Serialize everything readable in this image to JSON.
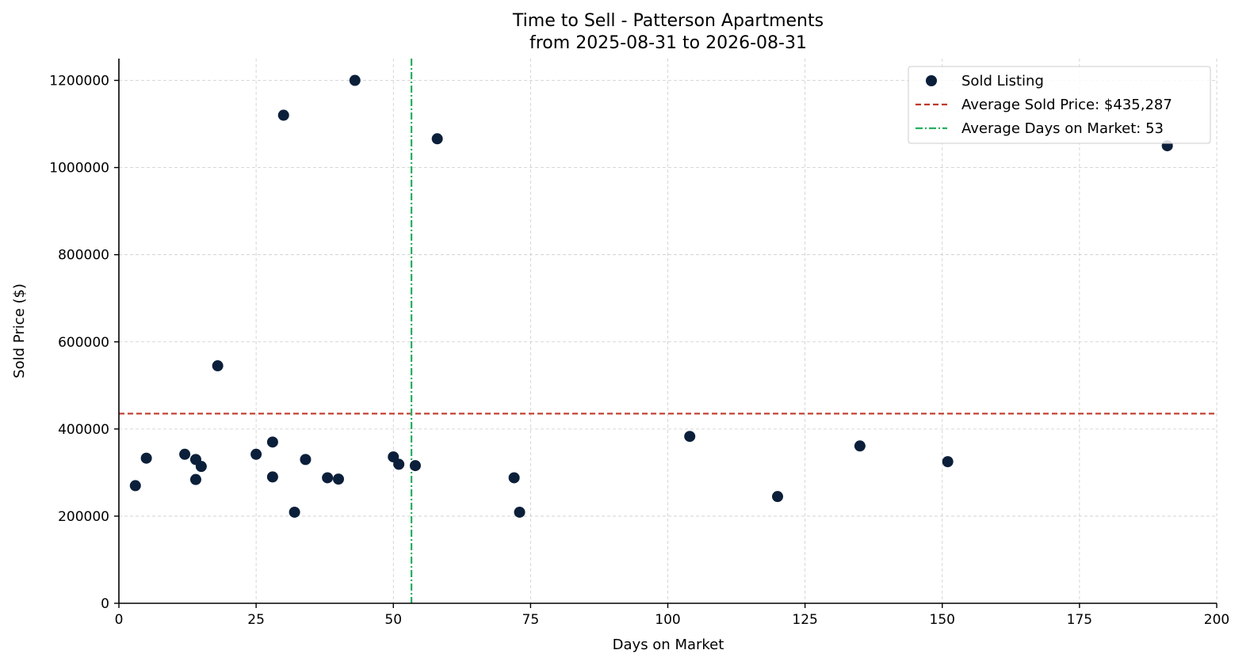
{
  "chart_data": {
    "type": "scatter",
    "title": "Time to Sell - Patterson Apartments",
    "subtitle": "from 2025-08-31 to 2026-08-31",
    "xlabel": "Days on Market",
    "ylabel": "Sold Price ($)",
    "xlim": [
      0,
      200
    ],
    "ylim": [
      0,
      1250000
    ],
    "xticks": [
      0,
      25,
      50,
      75,
      100,
      125,
      150,
      175,
      200
    ],
    "yticks": [
      0,
      200000,
      400000,
      600000,
      800000,
      1000000,
      1200000
    ],
    "grid": true,
    "legend_position": "top-right",
    "colors": {
      "points": "#0b1f3a",
      "avg_price_line": "#c0392b",
      "avg_days_line": "#27ae60"
    },
    "series": [
      {
        "name": "Sold Listing",
        "points": [
          {
            "x": 3,
            "y": 270000
          },
          {
            "x": 5,
            "y": 333000
          },
          {
            "x": 12,
            "y": 342000
          },
          {
            "x": 14,
            "y": 330000
          },
          {
            "x": 14,
            "y": 284000
          },
          {
            "x": 15,
            "y": 314000
          },
          {
            "x": 18,
            "y": 545000
          },
          {
            "x": 25,
            "y": 342000
          },
          {
            "x": 28,
            "y": 370000
          },
          {
            "x": 28,
            "y": 290000
          },
          {
            "x": 30,
            "y": 1120000
          },
          {
            "x": 32,
            "y": 209000
          },
          {
            "x": 34,
            "y": 330000
          },
          {
            "x": 38,
            "y": 288000
          },
          {
            "x": 40,
            "y": 285000
          },
          {
            "x": 43,
            "y": 1200000
          },
          {
            "x": 50,
            "y": 336000
          },
          {
            "x": 51,
            "y": 319000
          },
          {
            "x": 54,
            "y": 316000
          },
          {
            "x": 58,
            "y": 1066000
          },
          {
            "x": 72,
            "y": 288000
          },
          {
            "x": 73,
            "y": 209000
          },
          {
            "x": 104,
            "y": 383000
          },
          {
            "x": 120,
            "y": 245000
          },
          {
            "x": 135,
            "y": 361000
          },
          {
            "x": 151,
            "y": 325000
          },
          {
            "x": 191,
            "y": 1050000
          }
        ]
      }
    ],
    "reference_lines": {
      "avg_price": {
        "label": "Average Sold Price: $435,287",
        "value": 435287
      },
      "avg_days": {
        "label": "Average Days on Market: 53",
        "value": 53.3
      }
    }
  }
}
